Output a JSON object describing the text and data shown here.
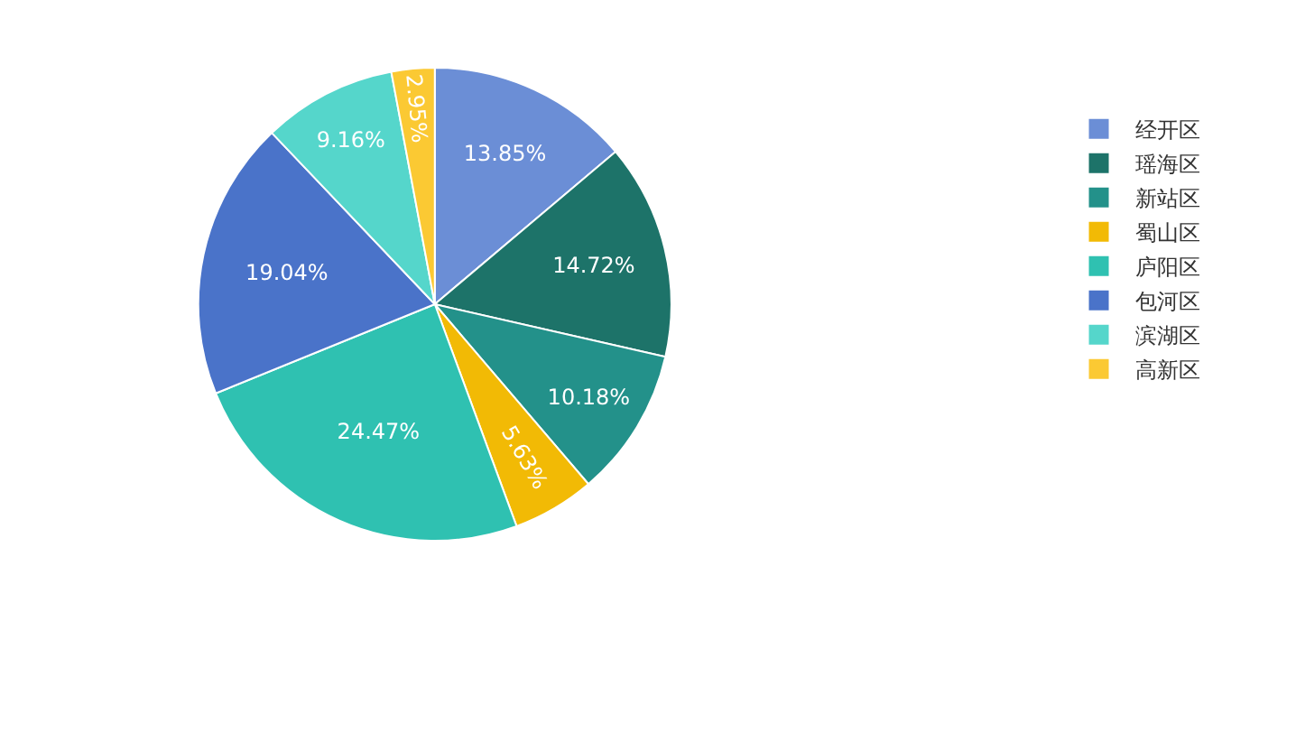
{
  "chart_data": {
    "type": "pie",
    "categories": [
      "经开区",
      "瑶海区",
      "新站区",
      "蜀山区",
      "庐阳区",
      "包河区",
      "滨湖区",
      "高新区"
    ],
    "values": [
      13.85,
      14.72,
      10.18,
      5.63,
      24.47,
      19.04,
      9.16,
      2.95
    ],
    "value_labels": [
      "13.85%",
      "14.72%",
      "10.18%",
      "5.63%",
      "24.47%",
      "19.04%",
      "9.16%",
      "2.95%"
    ],
    "colors": [
      "#6b8ed6",
      "#1d7369",
      "#23918a",
      "#f2ba05",
      "#2fc1b1",
      "#4a73c9",
      "#55d6cb",
      "#fbc933"
    ],
    "legend": "top right"
  }
}
